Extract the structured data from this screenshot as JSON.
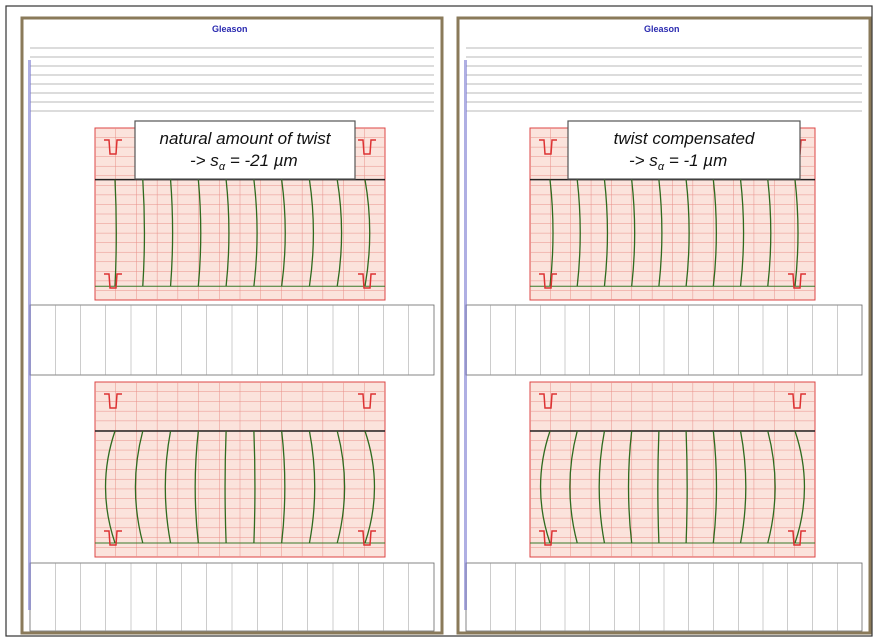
{
  "panels": [
    {
      "brand": "Gleason",
      "callout": {
        "line1": "natural amount of twist",
        "arrow": "-> s",
        "subscript": "α",
        "value": " = -21 µm"
      }
    },
    {
      "brand": "Gleason",
      "callout": {
        "line1": "twist compensated",
        "arrow": "-> s",
        "subscript": "α",
        "value": " = -1 µm"
      }
    }
  ]
}
